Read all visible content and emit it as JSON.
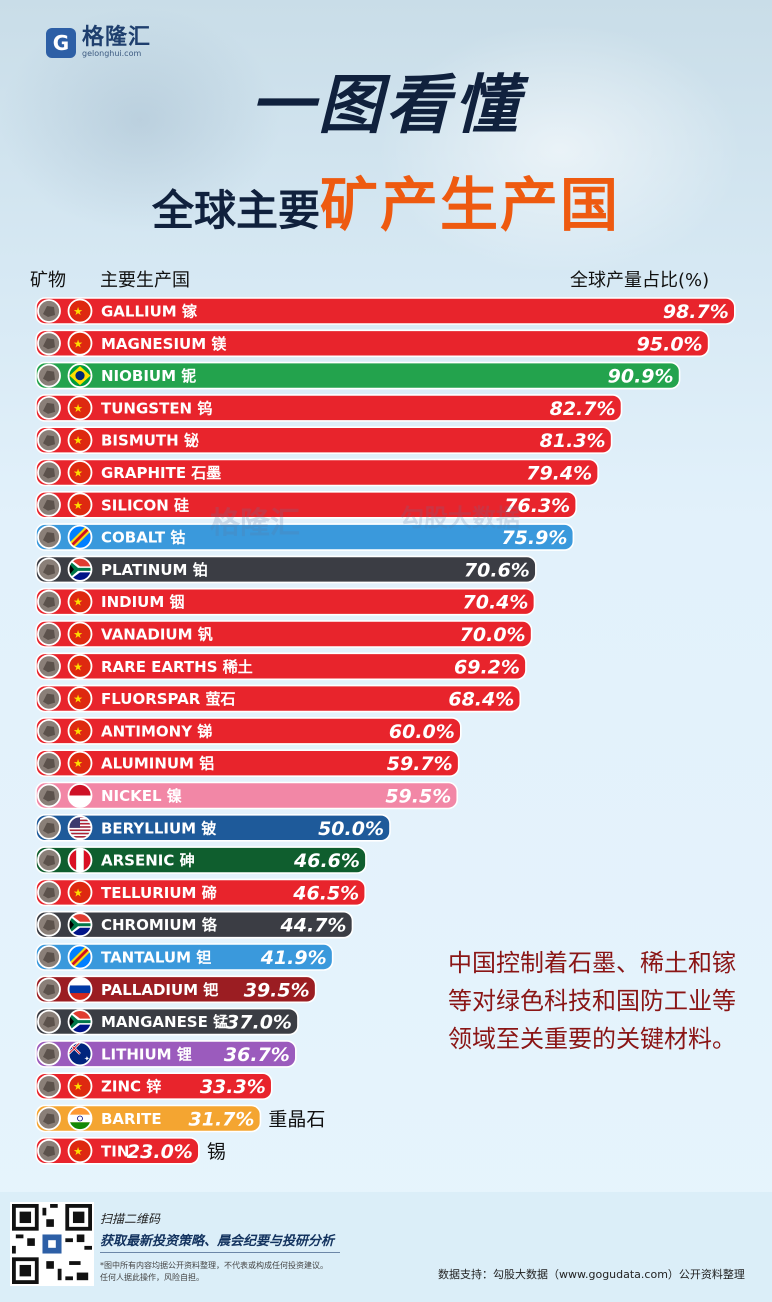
{
  "brand": {
    "logo_letter": "G",
    "name": "格隆汇",
    "domain": "gelonghui.com"
  },
  "title_line1": "一图看懂",
  "title_line2_a": "全球主要",
  "title_line2_b": "矿产生产国",
  "headers": {
    "mineral": "矿物",
    "producer": "主要生产国",
    "share": "全球产量占比(%)"
  },
  "colors": {
    "red": "#e8242c",
    "green": "#23a34d",
    "blue": "#3a99dc",
    "dark": "#3b3d44",
    "pink": "#f287a6",
    "navy": "#1e5a9a",
    "darkgreen": "#0f5e2e",
    "maroon": "#9b1d22",
    "purple": "#9b5bbd",
    "orange": "#f4a531"
  },
  "chart_data": {
    "type": "bar",
    "orientation": "horizontal",
    "xlim": [
      0,
      100
    ],
    "unit": "%",
    "bars": [
      {
        "mineral": "GALLIUM 镓",
        "country_icon": "china-flag-icon",
        "value": 98.7,
        "label": "98.7%",
        "color": "red"
      },
      {
        "mineral": "MAGNESIUM 镁",
        "country_icon": "china-flag-icon",
        "value": 95.0,
        "label": "95.0%",
        "color": "red"
      },
      {
        "mineral": "NIOBIUM 铌",
        "country_icon": "brazil-flag-icon",
        "value": 90.9,
        "label": "90.9%",
        "color": "green"
      },
      {
        "mineral": "TUNGSTEN 钨",
        "country_icon": "china-flag-icon",
        "value": 82.7,
        "label": "82.7%",
        "color": "red"
      },
      {
        "mineral": "BISMUTH 铋",
        "country_icon": "china-flag-icon",
        "value": 81.3,
        "label": "81.3%",
        "color": "red"
      },
      {
        "mineral": "GRAPHITE 石墨",
        "country_icon": "china-flag-icon",
        "value": 79.4,
        "label": "79.4%",
        "color": "red"
      },
      {
        "mineral": "SILICON 硅",
        "country_icon": "china-flag-icon",
        "value": 76.3,
        "label": "76.3%",
        "color": "red"
      },
      {
        "mineral": "COBALT 钴",
        "country_icon": "drc-flag-icon",
        "value": 75.9,
        "label": "75.9%",
        "color": "blue"
      },
      {
        "mineral": "PLATINUM 铂",
        "country_icon": "south-africa-flag-icon",
        "value": 70.6,
        "label": "70.6%",
        "color": "dark"
      },
      {
        "mineral": "INDIUM 铟",
        "country_icon": "china-flag-icon",
        "value": 70.4,
        "label": "70.4%",
        "color": "red"
      },
      {
        "mineral": "VANADIUM 钒",
        "country_icon": "china-flag-icon",
        "value": 70.0,
        "label": "70.0%",
        "color": "red"
      },
      {
        "mineral": "RARE EARTHS 稀土",
        "country_icon": "china-flag-icon",
        "value": 69.2,
        "label": "69.2%",
        "color": "red"
      },
      {
        "mineral": "FLUORSPAR 萤石",
        "country_icon": "china-flag-icon",
        "value": 68.4,
        "label": "68.4%",
        "color": "red"
      },
      {
        "mineral": "ANTIMONY 锑",
        "country_icon": "china-flag-icon",
        "value": 60.0,
        "label": "60.0%",
        "color": "red"
      },
      {
        "mineral": "ALUMINUM 铝",
        "country_icon": "china-flag-icon",
        "value": 59.7,
        "label": "59.7%",
        "color": "red"
      },
      {
        "mineral": "NICKEL 镍",
        "country_icon": "indonesia-flag-icon",
        "value": 59.5,
        "label": "59.5%",
        "color": "pink"
      },
      {
        "mineral": "BERYLLIUM 铍",
        "country_icon": "usa-flag-icon",
        "value": 50.0,
        "label": "50.0%",
        "color": "navy"
      },
      {
        "mineral": "ARSENIC 砷",
        "country_icon": "peru-flag-icon",
        "value": 46.6,
        "label": "46.6%",
        "color": "darkgreen"
      },
      {
        "mineral": "TELLURIUM 碲",
        "country_icon": "china-flag-icon",
        "value": 46.5,
        "label": "46.5%",
        "color": "red"
      },
      {
        "mineral": "CHROMIUM 铬",
        "country_icon": "south-africa-flag-icon",
        "value": 44.7,
        "label": "44.7%",
        "color": "dark"
      },
      {
        "mineral": "TANTALUM 钽",
        "country_icon": "drc-flag-icon",
        "value": 41.9,
        "label": "41.9%",
        "color": "blue"
      },
      {
        "mineral": "PALLADIUM 钯",
        "country_icon": "russia-flag-icon",
        "value": 39.5,
        "label": "39.5%",
        "color": "maroon"
      },
      {
        "mineral": "MANGANESE 锰",
        "country_icon": "south-africa-flag-icon",
        "value": 37.0,
        "label": "37.0%",
        "color": "dark"
      },
      {
        "mineral": "LITHIUM 锂",
        "country_icon": "australia-flag-icon",
        "value": 36.7,
        "label": "36.7%",
        "color": "purple"
      },
      {
        "mineral": "ZINC 锌",
        "country_icon": "china-flag-icon",
        "value": 33.3,
        "label": "33.3%",
        "color": "red"
      },
      {
        "mineral": "BARITE",
        "outside_label": "重晶石",
        "country_icon": "india-flag-icon",
        "value": 31.7,
        "label": "31.7%",
        "color": "orange"
      },
      {
        "mineral": "TIN",
        "outside_label": "锡",
        "country_icon": "china-flag-icon",
        "value": 23.0,
        "label": "23.0%",
        "color": "red"
      }
    ]
  },
  "note": "中国控制着石墨、稀土和镓等对绿色科技和国防工业等领域至关重要的关键材料。",
  "footer": {
    "scan": "扫描二维码",
    "scan_desc": "获取最新投资策略、晨会纪要与投研分析",
    "disclaimer_1": "*图中所有内容均据公开资料整理，不代表或构成任何投资建议。",
    "disclaimer_2": "任何人据此操作，风险自担。",
    "source": "数据支持：勾股大数据（www.gogudata.com）公开资料整理"
  },
  "watermark": {
    "brand": "格隆汇",
    "site": "勾股大数据"
  }
}
